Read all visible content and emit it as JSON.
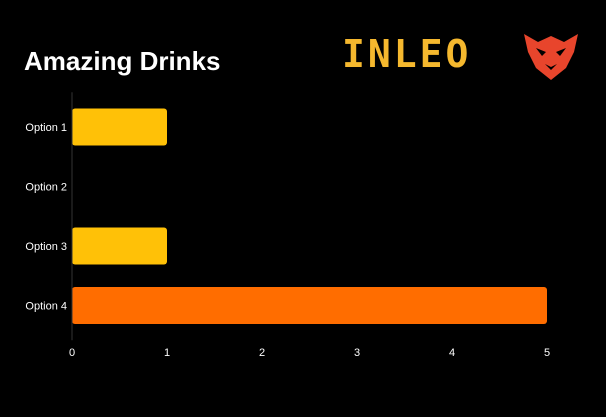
{
  "brand": {
    "name": "INLEO",
    "icon": "lion-head-icon",
    "text_color": "#f5b82e",
    "icon_color": "#e8452c"
  },
  "chart_data": {
    "type": "bar",
    "orientation": "horizontal",
    "title": "Amazing Drinks",
    "xlabel": "",
    "ylabel": "",
    "categories": [
      "Option 1",
      "Option 2",
      "Option 3",
      "Option 4"
    ],
    "values": [
      1,
      0,
      1,
      5
    ],
    "colors": [
      "#ffc107",
      "#ffc107",
      "#ffc107",
      "#ff6d00"
    ],
    "xlim": [
      0,
      5
    ],
    "xticks": [
      0,
      1,
      2,
      3,
      4,
      5
    ],
    "grid": false,
    "legend": "none",
    "background": "#000000"
  }
}
